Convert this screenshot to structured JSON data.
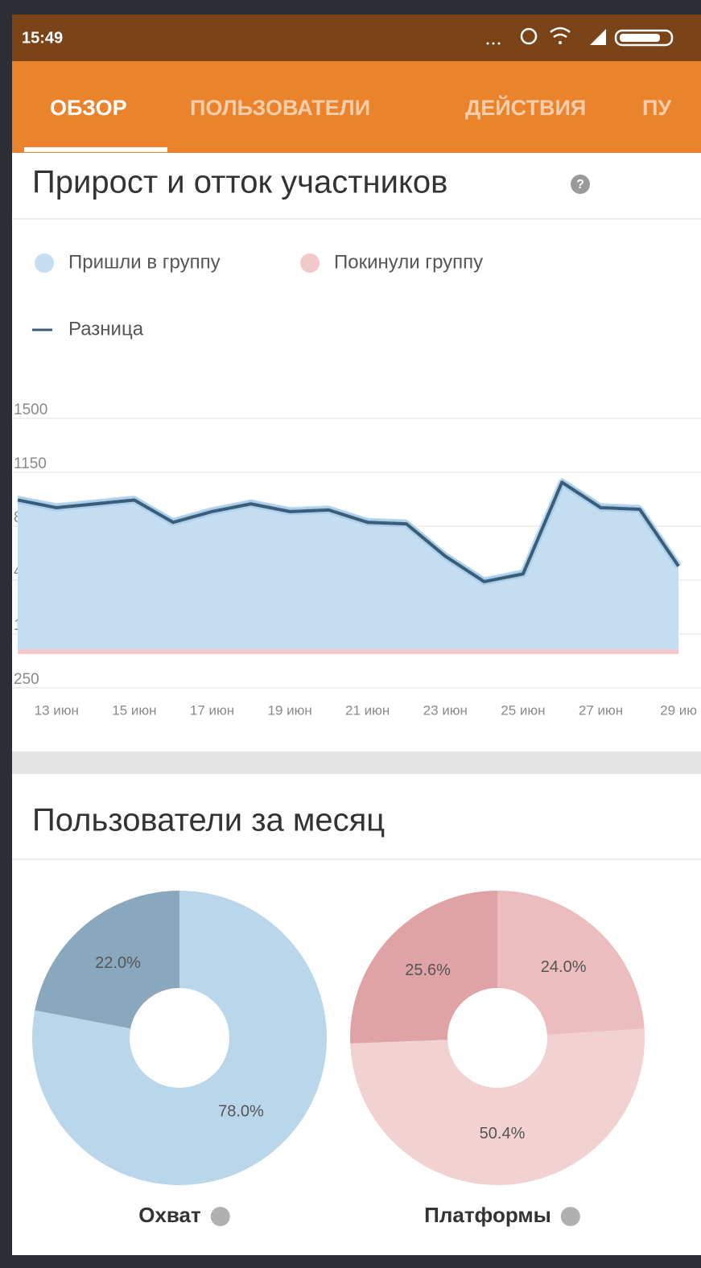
{
  "status_bar": {
    "time": "15:49"
  },
  "tabs": [
    "ОБЗОР",
    "ПОЛЬЗОВАТЕЛИ",
    "ДЕЙСТВИЯ",
    "ПУ"
  ],
  "headers": [
    "Прирост и отток участников",
    "Пользователи за месяц"
  ],
  "chart_data": [
    {
      "type": "line",
      "categories": [
        null,
        "13 июн",
        null,
        "15 июн",
        null,
        "17 июн",
        null,
        "19 июн",
        null,
        "21 июн",
        null,
        "23 июн",
        null,
        "25 июн",
        null,
        "27 июн",
        null,
        "29 ию"
      ],
      "series": [
        {
          "name": "Пришли в группу",
          "type": "area",
          "color": "#c5ddf1",
          "values": [
            1000,
            950,
            975,
            1000,
            855,
            925,
            975,
            925,
            935,
            855,
            845,
            635,
            470,
            520,
            1115,
            950,
            940,
            570
          ]
        },
        {
          "name": "Покинули группу",
          "type": "area",
          "color": "#f2c9cb",
          "values": [
            -30,
            -30,
            -30,
            -30,
            -30,
            -30,
            -30,
            -30,
            -30,
            -30,
            -30,
            -30,
            -30,
            -30,
            -30,
            -30,
            -30,
            -30
          ]
        },
        {
          "name": "Разница",
          "type": "line",
          "color": "#3b5e78",
          "values": [
            970,
            920,
            945,
            970,
            825,
            895,
            945,
            895,
            905,
            825,
            815,
            605,
            440,
            490,
            1085,
            920,
            910,
            540
          ]
        }
      ],
      "ylim": [
        -250,
        1500
      ],
      "yticks": [
        1500,
        1150,
        800,
        450,
        100,
        {
          "value": -250,
          "label": "250"
        }
      ],
      "grid": true
    },
    {
      "type": "pie",
      "title": "Охват",
      "values": [
        78,
        22
      ],
      "value_labels": [
        "78.0%",
        "22.0%"
      ],
      "colors": [
        "#bad6eb",
        "#89a8bd"
      ]
    },
    {
      "type": "pie",
      "title": "Платформы",
      "values": [
        24,
        50.4,
        25.6
      ],
      "value_labels": [
        "24.0%",
        "50.4%",
        "25.6%"
      ],
      "colors": [
        "#ecbdbe",
        "#f2d1d2",
        "#e0a3a5"
      ]
    }
  ]
}
